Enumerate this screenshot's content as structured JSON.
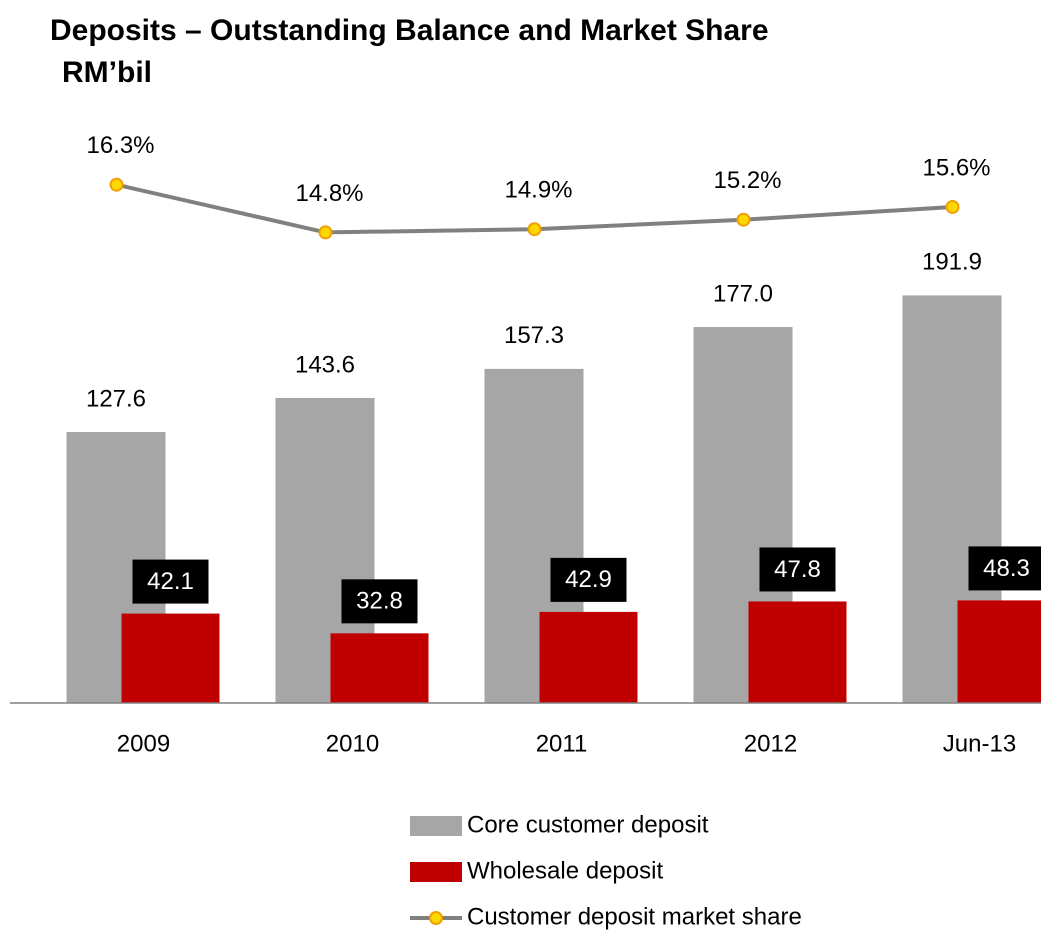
{
  "chart_data": {
    "type": "bar-line",
    "title": "Deposits – Outstanding  Balance and Market Share",
    "subtitle": "RM’bil",
    "categories": [
      "2009",
      "2010",
      "2011",
      "2012",
      "Jun-13"
    ],
    "series": [
      {
        "name": "Core customer deposit",
        "type": "bar",
        "color": "#a6a6a6",
        "values": [
          127.6,
          143.6,
          157.3,
          177.0,
          191.9
        ],
        "value_labels": [
          "127.6",
          "143.6",
          "157.3",
          "177.0",
          "191.9"
        ]
      },
      {
        "name": "Wholesale deposit",
        "type": "bar",
        "color": "#c00000",
        "values": [
          42.1,
          32.8,
          42.9,
          47.8,
          48.3
        ],
        "value_labels": [
          "42.1",
          "32.8",
          "42.9",
          "47.8",
          "48.3"
        ]
      },
      {
        "name": "Customer deposit market share",
        "type": "line",
        "axis": "y2",
        "color": "#808080",
        "marker_color": "#ffd700",
        "values": [
          16.3,
          14.8,
          14.9,
          15.2,
          15.6
        ],
        "value_labels": [
          "16.3%",
          "14.8%",
          "14.9%",
          "15.2%",
          "15.6%"
        ]
      }
    ],
    "ylim": [
      0,
      250
    ],
    "y2lim": [
      0,
      16.7
    ],
    "legend": "bottom"
  }
}
